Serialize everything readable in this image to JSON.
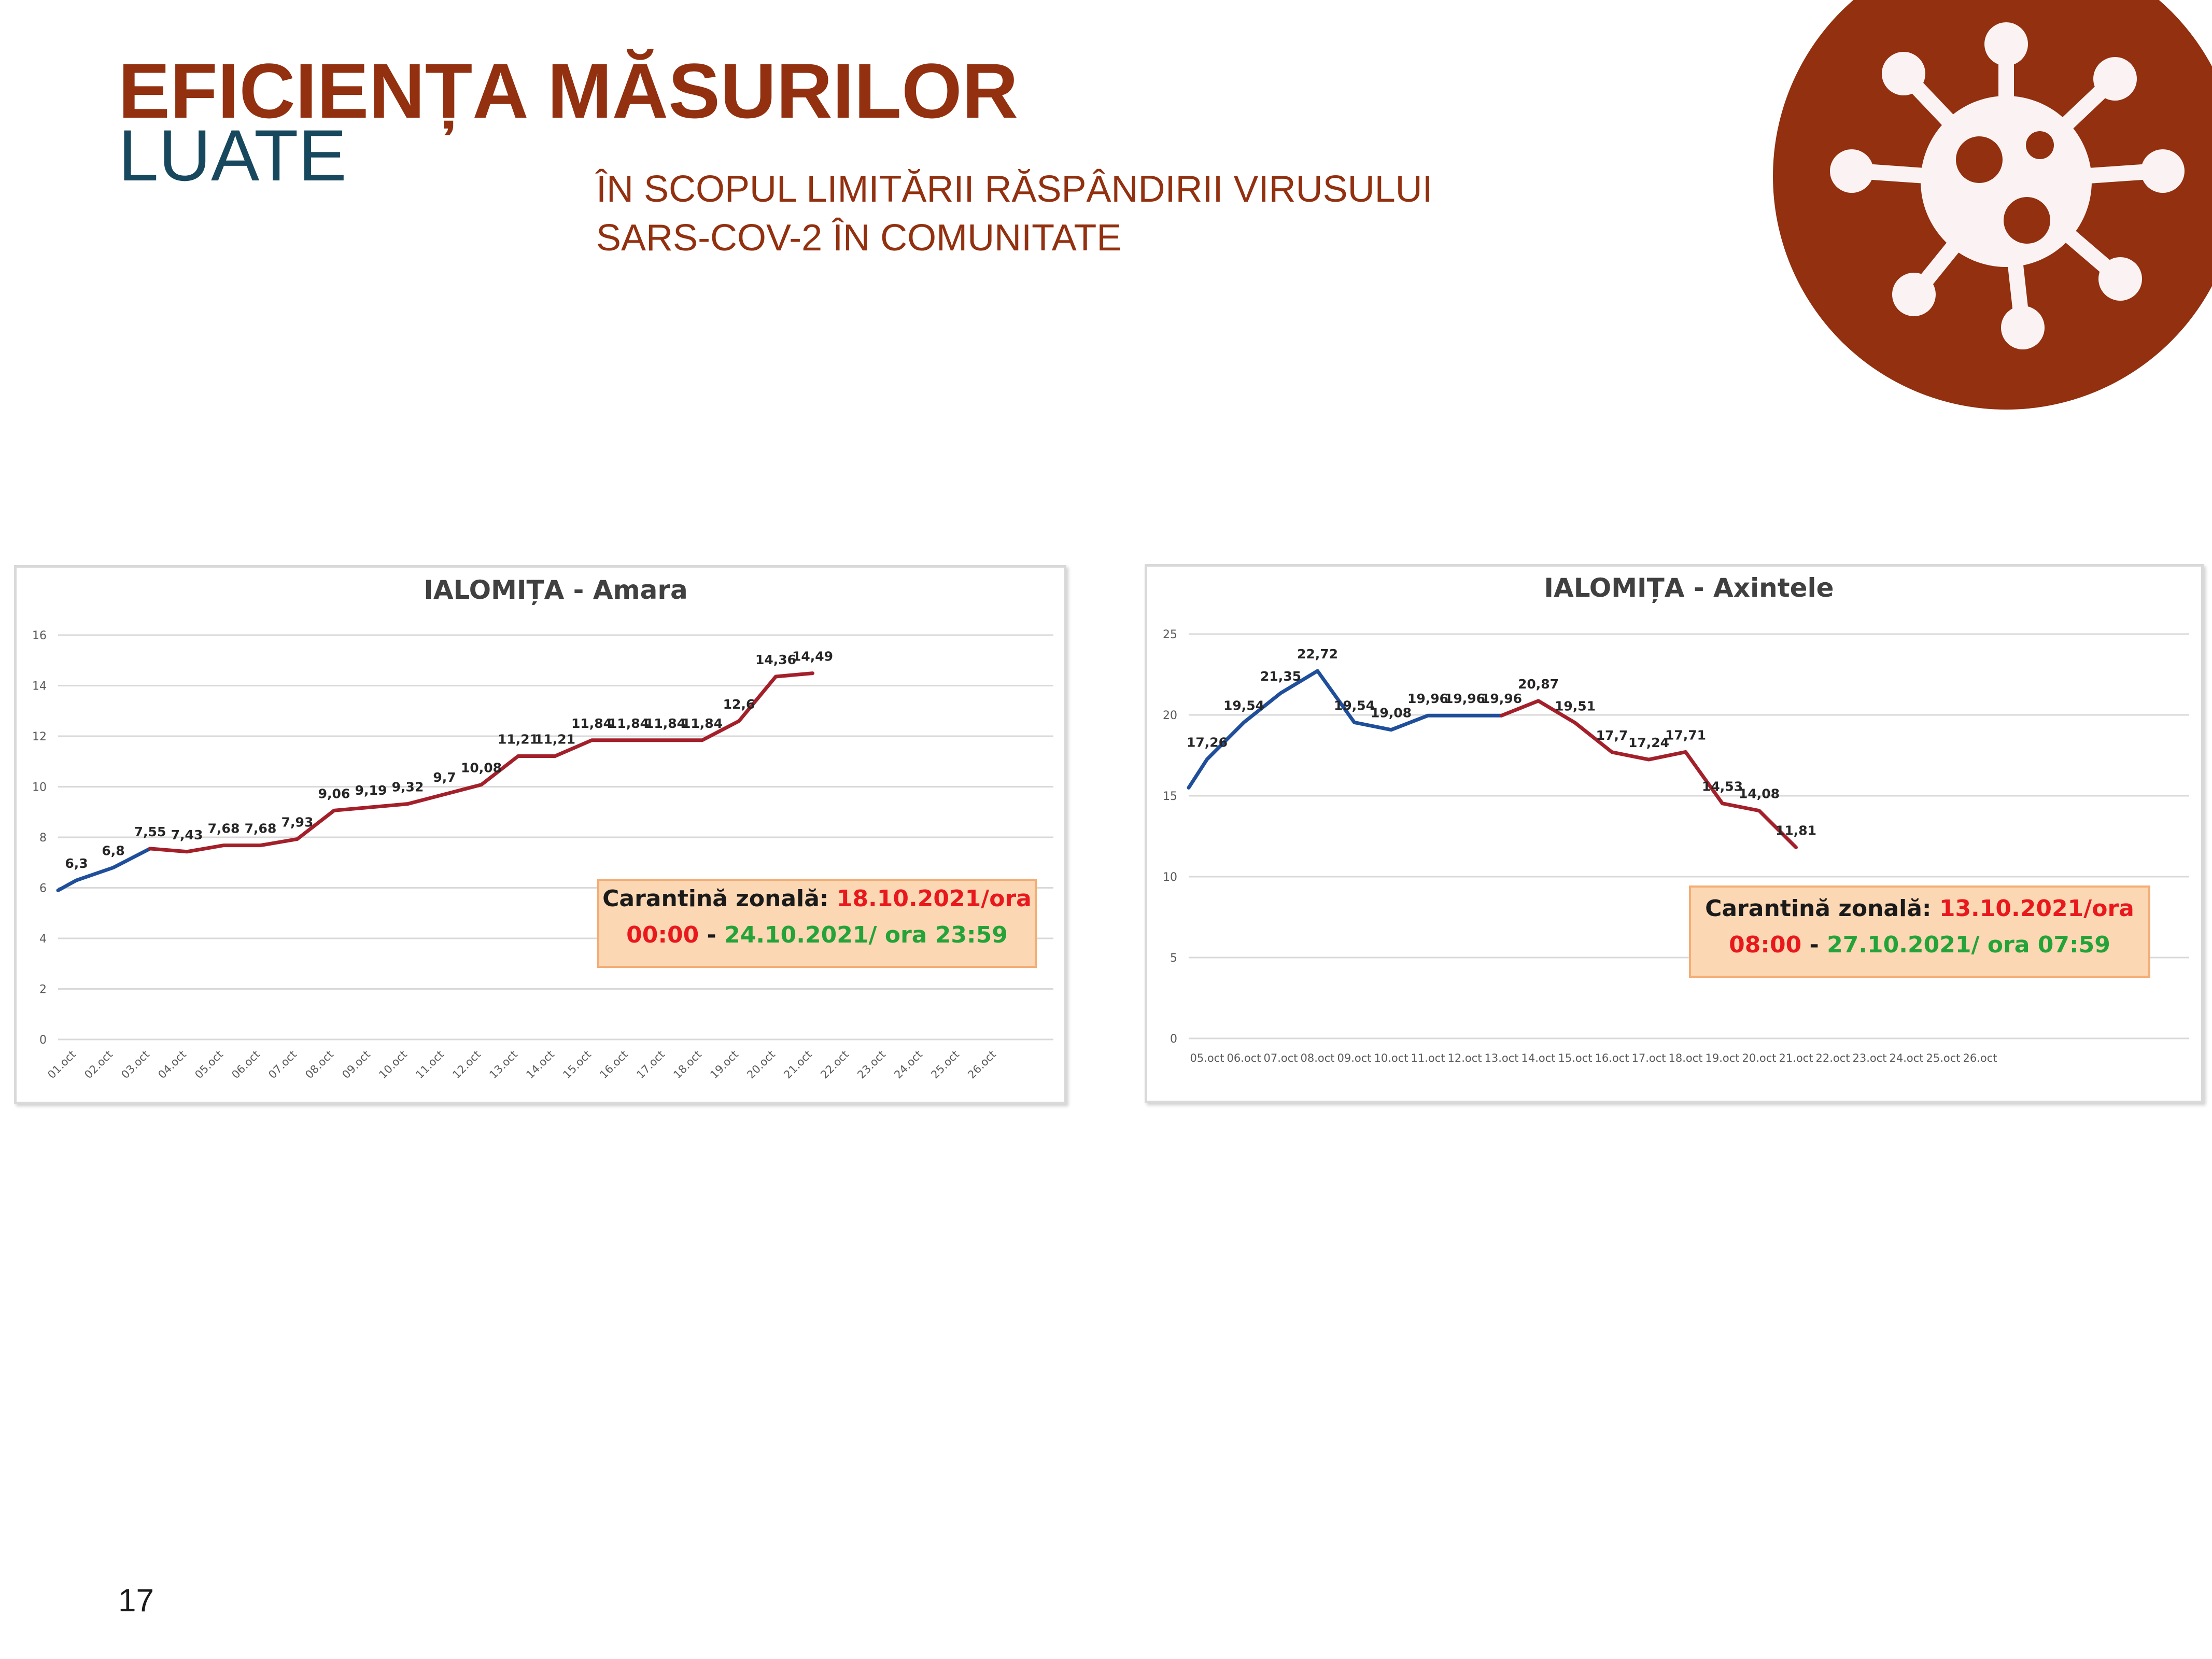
{
  "slide": {
    "title_line1": "EFICIENȚA MĂSURILOR",
    "title_line2": "LUATE",
    "subtitle_line1": "ÎN SCOPUL LIMITĂRII RĂSPÂNDIRII VIRUSULUI",
    "subtitle_line2": "SARS-COV-2 ÎN COMUNITATE",
    "page_number": "17",
    "badge_icon": "virus-icon",
    "colors": {
      "brand_red": "#92300f",
      "teal": "#17485e",
      "pre_line": "#1f4e9a",
      "post_line": "#a3202a"
    }
  },
  "chart_data": [
    {
      "type": "line",
      "title": "IALOMIȚA - Amara",
      "x": [
        "01.oct",
        "02.oct",
        "03.oct",
        "04.oct",
        "05.oct",
        "06.oct",
        "07.oct",
        "08.oct",
        "09.oct",
        "10.oct",
        "11.oct",
        "12.oct",
        "13.oct",
        "14.oct",
        "15.oct",
        "16.oct",
        "17.oct",
        "18.oct",
        "19.oct",
        "20.oct",
        "21.oct",
        "22.oct",
        "23.oct",
        "24.oct",
        "25.oct",
        "26.oct"
      ],
      "values": [
        6.3,
        6.8,
        7.55,
        7.43,
        7.68,
        7.68,
        7.93,
        9.06,
        9.19,
        9.32,
        9.7,
        10.08,
        11.21,
        11.21,
        11.84,
        11.84,
        11.84,
        11.84,
        12.6,
        14.36,
        14.49,
        null,
        null,
        null,
        null,
        null
      ],
      "labels": [
        "6,3",
        "6,8",
        "7,55",
        "7,43",
        "7,68",
        "7,68",
        "7,93",
        "9,06",
        "9,19",
        "9,32",
        "9,7",
        "10,08",
        "11,21",
        "11,21",
        "11,84",
        "11,84",
        "11,84",
        "11,84",
        "12,6",
        "14,36",
        "14,49",
        "",
        "",
        "",
        "",
        ""
      ],
      "line_start_value": 5.9,
      "ylim": [
        0,
        16
      ],
      "yticks": [
        0,
        2,
        4,
        6,
        8,
        10,
        12,
        14,
        16
      ],
      "blue_until_index": 2,
      "grid": true,
      "x_tick_rotation": "rotated",
      "note": {
        "label": "Carantină zonală:",
        "start": "18.10.2021/ora",
        "start2": "00:00",
        "separator": " - ",
        "end": "24.10.2021/ ora 23:59"
      }
    },
    {
      "type": "line",
      "title": "IALOMIȚA - Axintele",
      "x": [
        "05.oct",
        "06.oct",
        "07.oct",
        "08.oct",
        "09.oct",
        "10.oct",
        "11.oct",
        "12.oct",
        "13.oct",
        "14.oct",
        "15.oct",
        "16.oct",
        "17.oct",
        "18.oct",
        "19.oct",
        "20.oct",
        "21.oct",
        "22.oct",
        "23.oct",
        "24.oct",
        "25.oct",
        "26.oct"
      ],
      "values": [
        17.26,
        19.54,
        21.35,
        22.72,
        19.54,
        19.08,
        19.96,
        19.96,
        19.96,
        20.87,
        19.51,
        17.7,
        17.24,
        17.71,
        14.53,
        14.08,
        11.81,
        null,
        null,
        null,
        null,
        null
      ],
      "labels": [
        "17,26",
        "19,54",
        "21,35",
        "22,72",
        "19,54",
        "19,08",
        "19,96",
        "19,96",
        "19,96",
        "20,87",
        "19,51",
        "17,7",
        "17,24",
        "17,71",
        "14,53",
        "14,08",
        "11,81",
        "",
        "",
        "",
        "",
        ""
      ],
      "line_start_value": 15.5,
      "ylim": [
        0,
        25
      ],
      "yticks": [
        0,
        5,
        10,
        15,
        20,
        25
      ],
      "blue_until_index": 8,
      "grid": true,
      "x_tick_rotation": "horizontal",
      "note": {
        "label": "Carantină zonală:",
        "start": "13.10.2021/ora",
        "start2": "08:00",
        "separator": " - ",
        "end": "27.10.2021/ ora 07:59"
      }
    }
  ]
}
